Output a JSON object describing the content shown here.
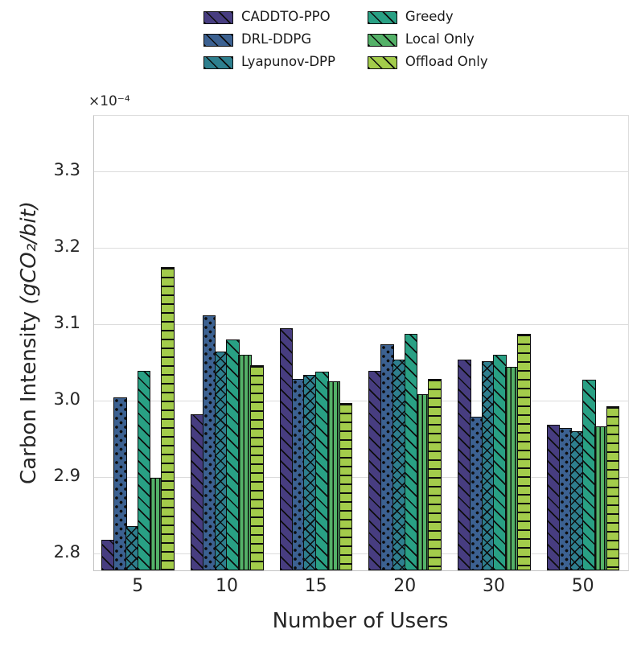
{
  "figure": {
    "background": "#ffffff",
    "text_color": "#262626",
    "grid_color": "#dcdcdc",
    "bar_edge_color": "#0d0d0d"
  },
  "legend": {
    "position": "top-center",
    "ncols": 2,
    "swatch_hatch": "diagonal"
  },
  "chart_data": {
    "type": "bar",
    "title": "",
    "xlabel": "Number of Users",
    "ylabel": "Carbon Intensity (gCO₂/bit)",
    "ylabel_text": "Carbon Intensity",
    "ylabel_unit": "(gCO₂/bit)",
    "y_scale_label": "×10⁻⁴",
    "y_scale_factor": "1e-4",
    "categories": [
      "5",
      "10",
      "15",
      "20",
      "30",
      "50"
    ],
    "series": [
      {
        "name": "CADDTO-PPO",
        "color": "#473d80",
        "hatch": "diagonal",
        "values": [
          2.818,
          2.982,
          3.095,
          3.039,
          3.054,
          2.968
        ]
      },
      {
        "name": "DRL-DDPG",
        "color": "#3c6191",
        "hatch": "dots",
        "values": [
          3.004,
          3.111,
          3.028,
          3.074,
          2.979,
          2.964
        ]
      },
      {
        "name": "Lyapunov-DPP",
        "color": "#2e7f8e",
        "hatch": "cross",
        "values": [
          2.836,
          3.064,
          3.034,
          3.054,
          3.051,
          2.96
        ]
      },
      {
        "name": "Greedy",
        "color": "#29a084",
        "hatch": "diagonal",
        "values": [
          3.039,
          3.08,
          3.038,
          3.087,
          3.06,
          3.027
        ]
      },
      {
        "name": "Local Only",
        "color": "#54b168",
        "hatch": "vertical",
        "values": [
          2.899,
          3.06,
          3.025,
          3.008,
          3.044,
          2.966
        ]
      },
      {
        "name": "Offload Only",
        "color": "#a3cc4b",
        "hatch": "horizontal",
        "values": [
          3.174,
          3.046,
          2.997,
          3.028,
          3.087,
          2.992
        ]
      }
    ],
    "yticks": [
      2.8,
      2.9,
      3.0,
      3.1,
      3.2,
      3.3
    ],
    "ylim": [
      2.778,
      3.372
    ],
    "grid": true,
    "legend_position": "top-center"
  }
}
